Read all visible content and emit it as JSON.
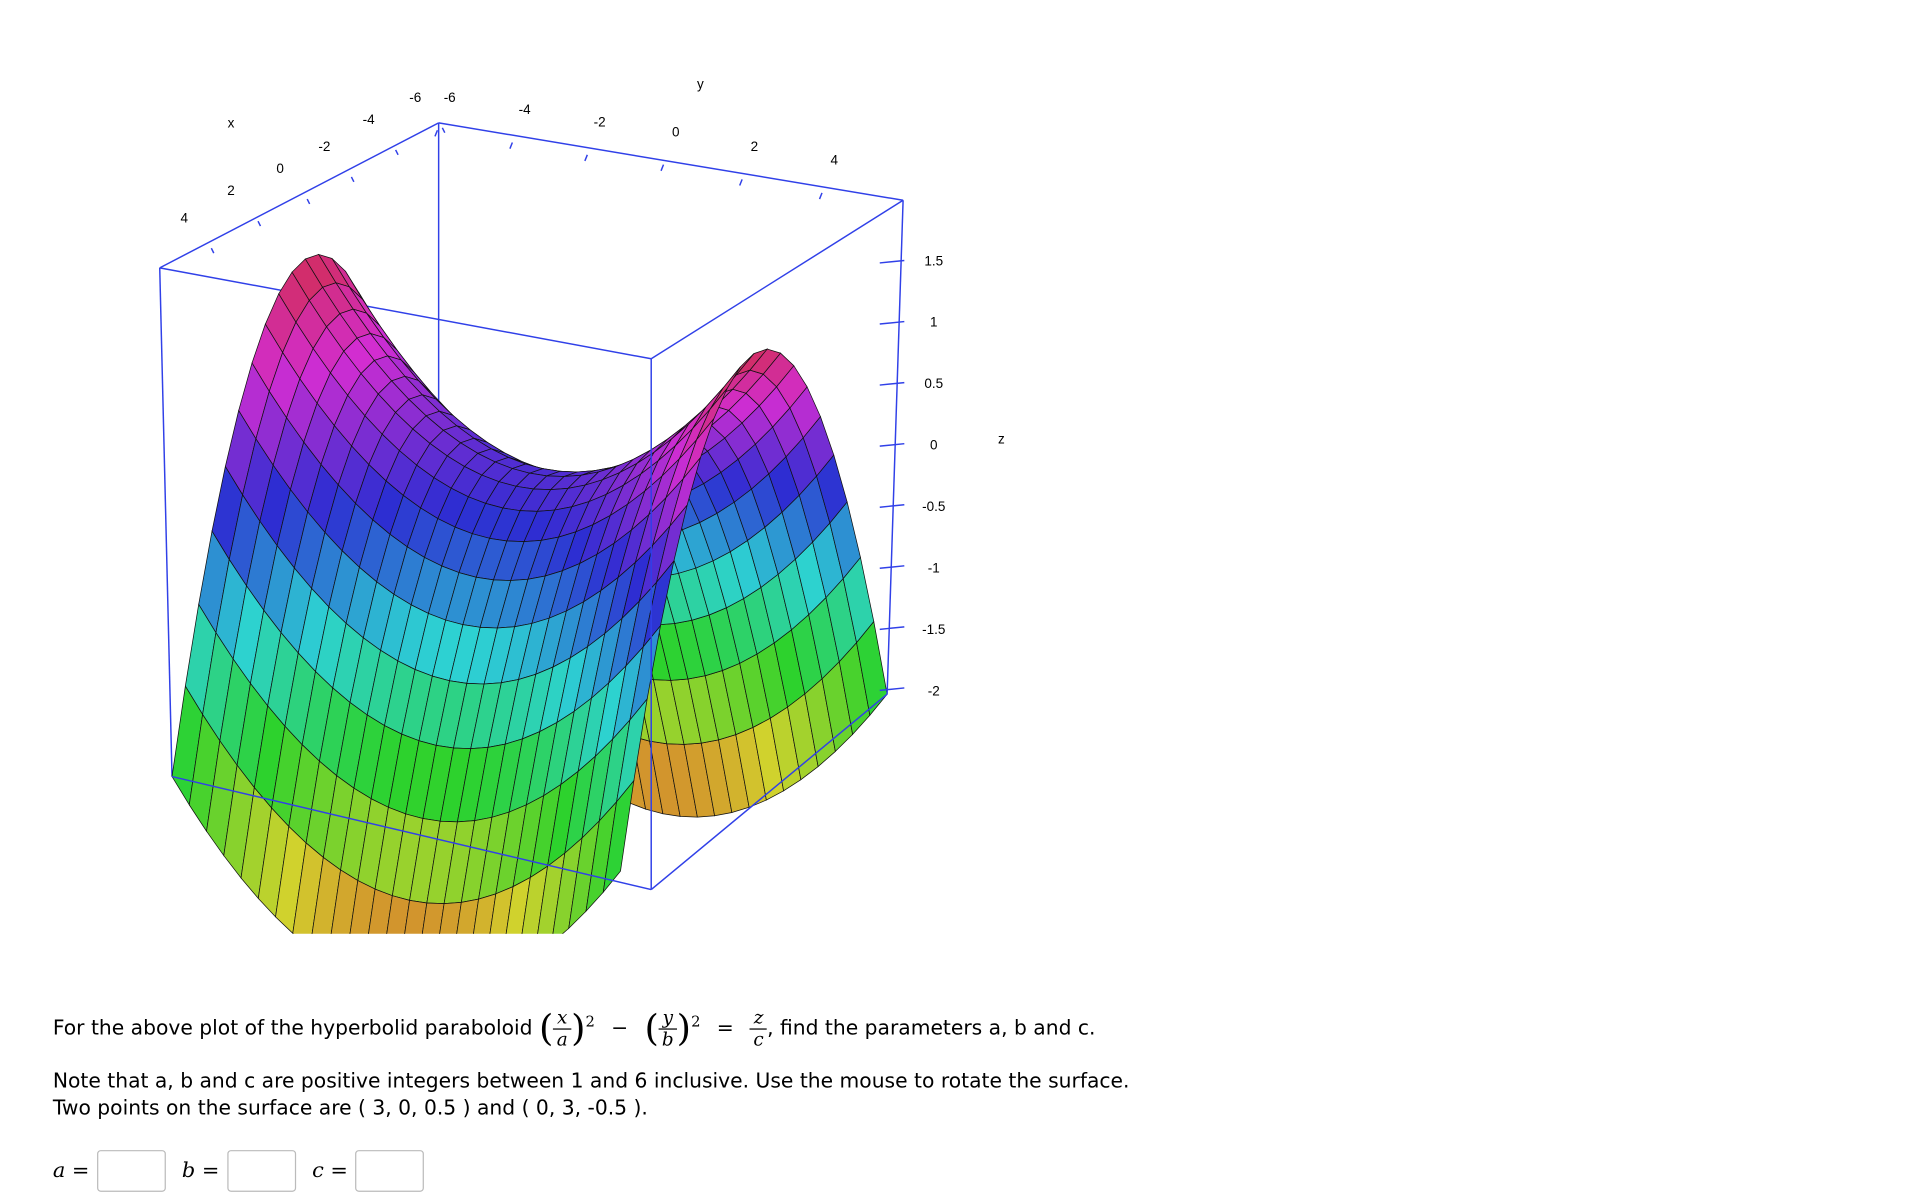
{
  "plot": {
    "x_axis": {
      "label": "x",
      "ticks": [
        "4",
        "2",
        "0",
        "-2",
        "-4",
        "-6"
      ]
    },
    "y_axis": {
      "label": "y",
      "ticks": [
        "-6",
        "-4",
        "-2",
        "0",
        "2",
        "4"
      ]
    },
    "z_axis": {
      "label": "z",
      "ticks": [
        "1.5",
        "1",
        "0.5",
        "0",
        "-0.5",
        "-1",
        "-1.5",
        "-2"
      ]
    }
  },
  "problem": {
    "intro": "For the above plot of the hyperbolid paraboloid",
    "formula": {
      "x_num": "x",
      "x_den": "a",
      "power1": "2",
      "minus": "−",
      "y_num": "y",
      "y_den": "b",
      "power2": "2",
      "equals": "=",
      "z_num": "z",
      "z_den": "c"
    },
    "ask": ", find the parameters a, b and c.",
    "note": "Note that a, b and c are positive integers between 1 and 6 inclusive. Use the mouse to rotate the surface.",
    "points": "Two points on the surface are ( 3, 0, 0.5 ) and ( 0, 3, -0.5 )."
  },
  "answers": [
    {
      "label": "a ="
    },
    {
      "label": "b ="
    },
    {
      "label": "c ="
    }
  ]
}
